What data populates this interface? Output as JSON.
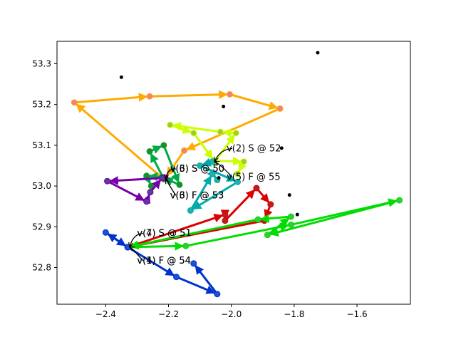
{
  "chart_data": {
    "type": "scatter",
    "title": "",
    "xlabel": "",
    "ylabel": "",
    "xlim": [
      -2.555,
      -1.43
    ],
    "ylim": [
      52.71,
      53.355
    ],
    "x_ticks": [
      -2.4,
      -2.2,
      -2.0,
      -1.8,
      -1.6
    ],
    "x_tick_labels": [
      "−2.4",
      "−2.2",
      "−2.0",
      "−1.8",
      "−1.6"
    ],
    "y_ticks": [
      52.8,
      52.9,
      53.0,
      53.1,
      53.2,
      53.3
    ],
    "y_tick_labels": [
      "52.8",
      "52.9",
      "53.0",
      "53.1",
      "53.2",
      "53.3"
    ],
    "grid": false,
    "nodes": [
      {
        "x": -2.35,
        "y": 53.267
      },
      {
        "x": -1.725,
        "y": 53.327
      },
      {
        "x": -2.025,
        "y": 53.195
      },
      {
        "x": -1.84,
        "y": 53.093
      },
      {
        "x": -1.815,
        "y": 52.978
      },
      {
        "x": -1.79,
        "y": 52.93
      },
      {
        "x": -2.04,
        "y": 53.02
      }
    ],
    "series": [
      {
        "color": "#ffaa00",
        "marker": "#f08080",
        "points": [
          [
            -2.215,
            53.017
          ],
          [
            -2.5,
            53.205
          ],
          [
            -2.26,
            53.22
          ],
          [
            -2.005,
            53.225
          ],
          [
            -1.845,
            53.19
          ],
          [
            -2.15,
            53.087
          ],
          [
            -2.21,
            53.02
          ]
        ]
      },
      {
        "color": "#ccff00",
        "marker": "#9acd32",
        "points": [
          [
            -2.055,
            53.058
          ],
          [
            -1.985,
            53.13
          ],
          [
            -2.035,
            53.133
          ],
          [
            -2.195,
            53.15
          ],
          [
            -2.12,
            53.13
          ],
          [
            -2.055,
            53.062
          ]
        ]
      },
      {
        "color": "#00aa44",
        "marker": "#228b22",
        "points": [
          [
            -2.215,
            53.017
          ],
          [
            -2.26,
            53.085
          ],
          [
            -2.215,
            53.1
          ],
          [
            -2.165,
            53.003
          ],
          [
            -2.22,
            53.022
          ],
          [
            -2.22,
            53.022
          ],
          [
            -2.27,
            53.025
          ],
          [
            -2.255,
            53.0
          ]
        ]
      },
      {
        "color": "#ccff00",
        "marker": "#9acd32",
        "points": [
          [
            -2.055,
            53.062
          ],
          [
            -1.96,
            53.06
          ],
          [
            -1.98,
            53.03
          ]
        ]
      },
      {
        "color": "#00aaaa",
        "marker": "#20b2aa",
        "points": [
          [
            -2.06,
            53.06
          ],
          [
            -2.1,
            53.05
          ],
          [
            -1.98,
            53.01
          ],
          [
            -2.13,
            52.94
          ],
          [
            -2.06,
            53.03
          ],
          [
            -2.045,
            53.015
          ]
        ]
      },
      {
        "color": "#7700aa",
        "marker": "#5b3d9a",
        "points": [
          [
            -2.21,
            53.02
          ],
          [
            -2.395,
            53.012
          ],
          [
            -2.27,
            52.962
          ],
          [
            -2.258,
            52.985
          ],
          [
            -2.22,
            53.02
          ]
        ]
      },
      {
        "color": "#dd0000",
        "marker": "#b22222",
        "points": [
          [
            -2.33,
            52.85
          ],
          [
            -2.02,
            52.93
          ],
          [
            -2.02,
            52.915
          ],
          [
            -1.92,
            52.995
          ],
          [
            -1.875,
            52.955
          ],
          [
            -1.895,
            52.915
          ],
          [
            -2.33,
            52.85
          ]
        ]
      },
      {
        "color": "#00dd00",
        "marker": "#32cd32",
        "points": [
          [
            -2.33,
            52.85
          ],
          [
            -2.145,
            52.853
          ],
          [
            -1.81,
            52.905
          ],
          [
            -1.465,
            52.965
          ],
          [
            -1.885,
            52.88
          ],
          [
            -1.81,
            52.925
          ],
          [
            -1.915,
            52.918
          ],
          [
            -2.33,
            52.85
          ]
        ]
      },
      {
        "color": "#0033cc",
        "marker": "#1e4fd8",
        "points": [
          [
            -2.33,
            52.85
          ],
          [
            -2.4,
            52.886
          ],
          [
            -2.33,
            52.85
          ],
          [
            -2.175,
            52.777
          ],
          [
            -2.045,
            52.735
          ],
          [
            -2.12,
            52.81
          ]
        ]
      }
    ],
    "annotations": [
      {
        "text": "v(2) S @ 52",
        "x": -2.015,
        "y": 53.085,
        "tx": -2.06,
        "ty": 53.06
      },
      {
        "text": "v(3) S @ 50",
        "x": -2.195,
        "y": 53.035,
        "tx": -2.215,
        "ty": 53.017
      },
      {
        "text": "v(6) S @ 50",
        "x": -2.195,
        "y": 53.035,
        "tx": -2.215,
        "ty": 53.017
      },
      {
        "text": "v(5) F @ 55",
        "x": -2.015,
        "y": 53.015,
        "tx": -2.06,
        "ty": 53.06
      },
      {
        "text": "v(3) F @ 53",
        "x": -2.195,
        "y": 52.97,
        "tx": -2.215,
        "ty": 53.017
      },
      {
        "text": "v(6) F @ 53",
        "x": -2.195,
        "y": 52.97,
        "tx": -2.215,
        "ty": 53.017
      },
      {
        "text": "v(4) S @ 51",
        "x": -2.3,
        "y": 52.877,
        "tx": -2.33,
        "ty": 52.85
      },
      {
        "text": "v(7) S @ 51",
        "x": -2.3,
        "y": 52.877,
        "tx": -2.33,
        "ty": 52.85
      },
      {
        "text": "v(1) F @ 54",
        "x": -2.3,
        "y": 52.81,
        "tx": -2.33,
        "ty": 52.85
      },
      {
        "text": "v(4) F @ 54",
        "x": -2.3,
        "y": 52.81,
        "tx": -2.33,
        "ty": 52.85
      }
    ]
  }
}
